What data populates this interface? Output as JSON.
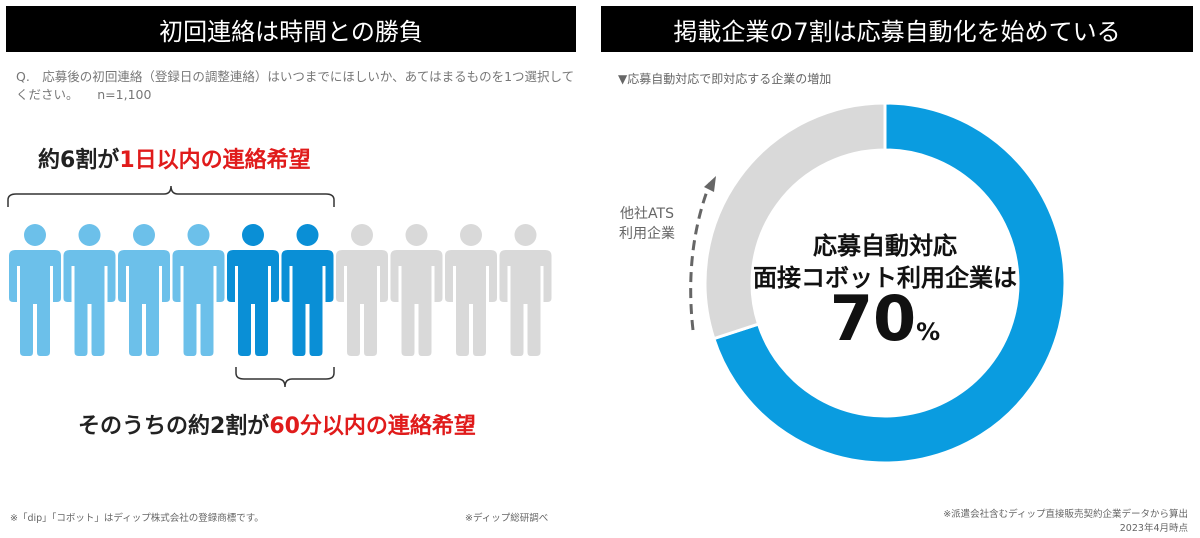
{
  "left": {
    "title": "初回連絡は時間との勝負",
    "question": "Q.　応募後の初回連絡（登録日の調整連絡）はいつまでにほしいか、あてはまるものを1つ選択してください。　　n=1,100",
    "headline_top_prefix": "約6割が",
    "headline_top_highlight": "1日以内の連絡希望",
    "headline_bottom_prefix": "そのうちの約2割が",
    "headline_bottom_highlight": "60分以内の連絡希望",
    "trademark_note": "※「dip」「コボット」はディップ株式会社の登録商標です。",
    "source_note": "※ディップ総研調べ",
    "people": {
      "total": 10,
      "light_blue": 4,
      "dark_blue": 2,
      "gray": 4
    },
    "colors": {
      "light_blue": "#6cc0ea",
      "dark_blue": "#0a8fd6",
      "gray": "#d9d9d9"
    }
  },
  "right": {
    "title": "掲載企業の7割は応募自動化を始めている",
    "subtitle": "▼応募自動対応で即対応する企業の増加",
    "side_label_line1": "他社ATS",
    "side_label_line2": "利用企業",
    "center_line1": "応募自動対応",
    "center_line2": "面接コボット利用企業は",
    "center_value": "70",
    "center_unit": "%",
    "note_line1": "※派遣会社含むディップ直接販売契約企業データから算出",
    "note_line2": "2023年4月時点",
    "colors": {
      "main": "#0a9ce0",
      "other": "#d9d9d9"
    }
  },
  "chart_data": [
    {
      "type": "pie",
      "categories": [
        "応募自動対応 面接コボット利用企業",
        "他社ATS 利用企業"
      ],
      "values": [
        70,
        30
      ],
      "colors": [
        "#0a9ce0",
        "#d9d9d9"
      ]
    }
  ]
}
